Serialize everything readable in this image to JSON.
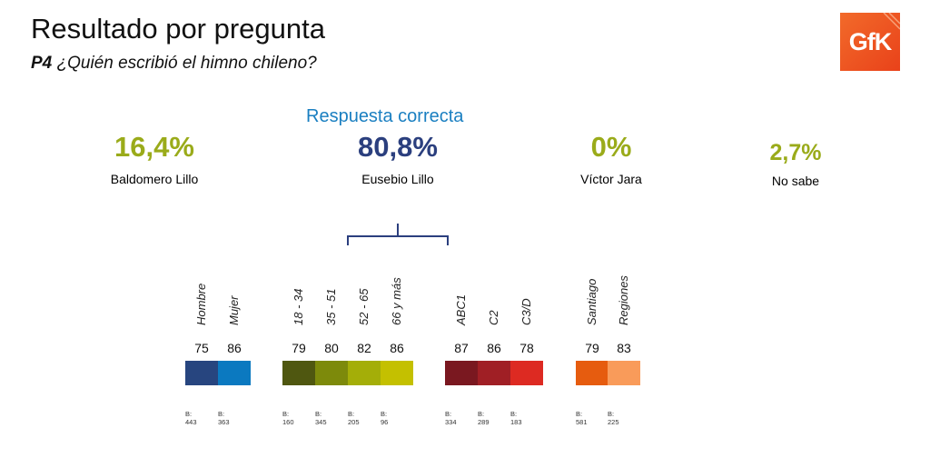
{
  "header": {
    "title": "Resultado por pregunta",
    "question_code": "P4",
    "question_text": "¿Quién escribió el himno chileno?",
    "logo_text": "GfK"
  },
  "answers": {
    "correct_label": "Respuesta correcta",
    "items": [
      {
        "percent": "16,4%",
        "label": "Baldomero Lillo",
        "color": "#9aab1a"
      },
      {
        "percent": "80,8%",
        "label": "Eusebio Lillo",
        "color": "#2b3f7e"
      },
      {
        "percent": "0%",
        "label": "Víctor Jara",
        "color": "#9aab1a"
      },
      {
        "percent": "2,7%",
        "label": "No sabe",
        "color": "#9aab1a"
      }
    ]
  },
  "segments": [
    {
      "label": "Hombre",
      "value": "75",
      "base_prefix": "B:",
      "base": "443",
      "color": "#27457f"
    },
    {
      "label": "Mujer",
      "value": "86",
      "base_prefix": "B:",
      "base": "363",
      "color": "#0b79c0"
    },
    {
      "label": "18 - 34",
      "value": "79",
      "base_prefix": "B:",
      "base": "160",
      "color": "#4f5710"
    },
    {
      "label": "35 - 51",
      "value": "80",
      "base_prefix": "B:",
      "base": "345",
      "color": "#7d8a0b"
    },
    {
      "label": "52 - 65",
      "value": "82",
      "base_prefix": "B:",
      "base": "205",
      "color": "#a4ae08"
    },
    {
      "label": "66 y más",
      "value": "86",
      "base_prefix": "B:",
      "base": "96",
      "color": "#c4c000"
    },
    {
      "label": "ABC1",
      "value": "87",
      "base_prefix": "B:",
      "base": "334",
      "color": "#7a1820"
    },
    {
      "label": "C2",
      "value": "86",
      "base_prefix": "B:",
      "base": "289",
      "color": "#a01f25"
    },
    {
      "label": "C3/D",
      "value": "78",
      "base_prefix": "B:",
      "base": "183",
      "color": "#dd2a22"
    },
    {
      "label": "Santiago",
      "value": "79",
      "base_prefix": "B:",
      "base": "581",
      "color": "#e65c0f"
    },
    {
      "label": "Regiones",
      "value": "83",
      "base_prefix": "B:",
      "base": "225",
      "color": "#f99b5a"
    }
  ]
}
